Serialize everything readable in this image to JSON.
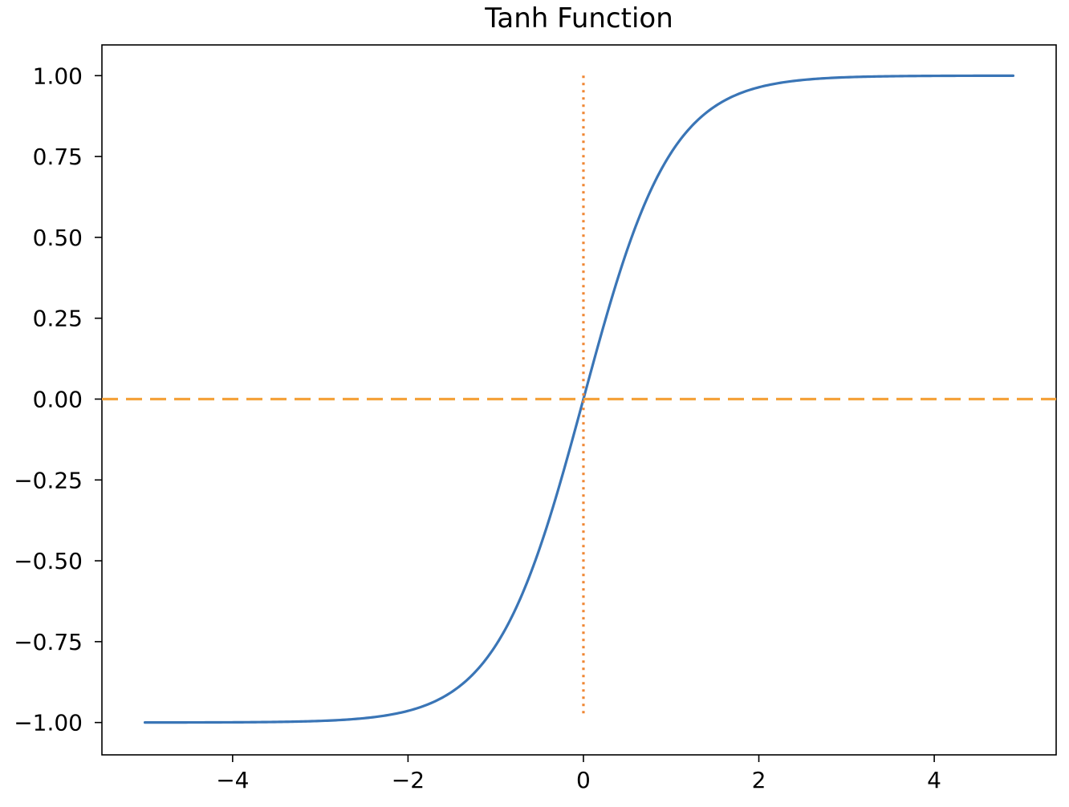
{
  "chart_data": {
    "type": "line",
    "title": "Tanh Function",
    "xlabel": "",
    "ylabel": "",
    "xlim": [
      -5.49,
      5.39
    ],
    "ylim": [
      -1.1,
      1.095
    ],
    "x_ticks": [
      -4,
      -2,
      0,
      2,
      4
    ],
    "x_tick_labels": [
      "−4",
      "−2",
      "0",
      "2",
      "4"
    ],
    "y_ticks": [
      1.0,
      0.75,
      0.5,
      0.25,
      0.0,
      -0.25,
      -0.5,
      -0.75,
      -1.0
    ],
    "y_tick_labels": [
      "1.00",
      "0.75",
      "0.50",
      "0.25",
      "0.00",
      "−0.25",
      "−0.50",
      "−0.75",
      "−1.00"
    ],
    "grid": false,
    "series": [
      {
        "function": "tanh(x)",
        "x_range": [
          -5.0,
          4.9
        ],
        "color": "#3a75b6",
        "style": "solid",
        "sample_points": [
          [
            -5.0,
            -0.9999
          ],
          [
            -4.0,
            -0.9993
          ],
          [
            -3.0,
            -0.9951
          ],
          [
            -2.0,
            -0.964
          ],
          [
            -1.5,
            -0.9051
          ],
          [
            -1.0,
            -0.7616
          ],
          [
            -0.5,
            -0.4621
          ],
          [
            0.0,
            0.0
          ],
          [
            0.5,
            0.4621
          ],
          [
            1.0,
            0.7616
          ],
          [
            1.5,
            0.9051
          ],
          [
            2.0,
            0.964
          ],
          [
            3.0,
            0.9951
          ],
          [
            4.0,
            0.9993
          ],
          [
            4.9,
            0.9999
          ]
        ]
      }
    ],
    "reference_lines": [
      {
        "orientation": "horizontal",
        "y": 0.0,
        "color": "#f4a23b",
        "style": "dashed"
      },
      {
        "orientation": "vertical",
        "x": 0.0,
        "y_range": [
          -0.98,
          1.0
        ],
        "color": "#ef8633",
        "style": "dotted"
      }
    ]
  }
}
